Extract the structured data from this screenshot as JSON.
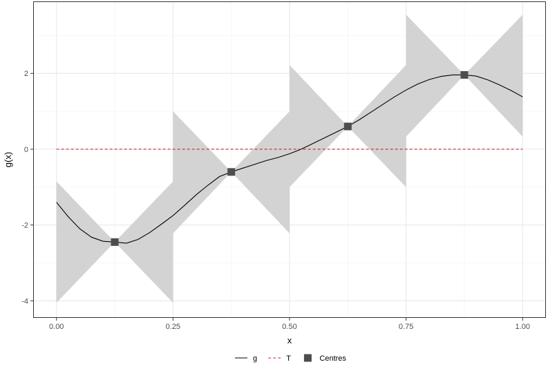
{
  "chart_data": {
    "type": "line",
    "title": "",
    "xlabel": "x",
    "ylabel": "g(x)",
    "xlim": [
      -0.05,
      1.05
    ],
    "ylim": [
      -4.45,
      3.9
    ],
    "grid": true,
    "x_ticks": [
      0.0,
      0.25,
      0.5,
      0.75,
      1.0
    ],
    "x_tick_labels": [
      "0.00",
      "0.25",
      "0.50",
      "0.75",
      "1.00"
    ],
    "y_ticks": [
      -4,
      -2,
      0,
      2
    ],
    "y_tick_labels": [
      "-4",
      "-2",
      "0",
      "2"
    ],
    "legend_position": "bottom",
    "legend": [
      {
        "name": "g",
        "style": "solid-line",
        "color": "#000000"
      },
      {
        "name": "T",
        "style": "dashed-line",
        "color": "#e41a1c"
      },
      {
        "name": "Centres",
        "style": "square",
        "color": "#4d4d4d"
      }
    ],
    "series": [
      {
        "name": "g",
        "color": "#000000",
        "x": [
          0.0,
          0.025,
          0.05,
          0.075,
          0.1,
          0.125,
          0.15,
          0.175,
          0.2,
          0.225,
          0.25,
          0.275,
          0.3,
          0.325,
          0.35,
          0.375,
          0.4,
          0.425,
          0.45,
          0.475,
          0.5,
          0.525,
          0.55,
          0.575,
          0.6,
          0.625,
          0.65,
          0.675,
          0.7,
          0.725,
          0.75,
          0.775,
          0.8,
          0.825,
          0.85,
          0.875,
          0.9,
          0.925,
          0.95,
          0.975,
          1.0
        ],
        "y": [
          -1.4,
          -1.78,
          -2.1,
          -2.32,
          -2.43,
          -2.45,
          -2.48,
          -2.38,
          -2.2,
          -1.98,
          -1.75,
          -1.48,
          -1.2,
          -0.95,
          -0.72,
          -0.6,
          -0.5,
          -0.4,
          -0.3,
          -0.22,
          -0.12,
          0.0,
          0.15,
          0.3,
          0.45,
          0.6,
          0.78,
          0.98,
          1.18,
          1.38,
          1.56,
          1.72,
          1.84,
          1.92,
          1.96,
          1.96,
          1.93,
          1.83,
          1.7,
          1.55,
          1.38
        ]
      },
      {
        "name": "T",
        "color": "#e41a1c",
        "x": [
          0.0,
          1.0
        ],
        "y": [
          0,
          0
        ]
      }
    ],
    "centres": {
      "name": "Centres",
      "x": [
        0.125,
        0.375,
        0.625,
        0.875
      ],
      "y": [
        -2.45,
        -0.6,
        0.6,
        1.96
      ]
    },
    "bands": [
      {
        "x": [
          0.0,
          0.25
        ],
        "centre": [
          0.125,
          -2.45
        ],
        "lower": [
          -4.05,
          -4.05
        ],
        "upper": [
          -0.85,
          -0.85
        ]
      },
      {
        "x": [
          0.25,
          0.5
        ],
        "centre": [
          0.375,
          -0.6
        ],
        "lower": [
          -2.22,
          -2.22
        ],
        "upper": [
          1.0,
          1.0
        ]
      },
      {
        "x": [
          0.5,
          0.75
        ],
        "centre": [
          0.625,
          0.6
        ],
        "lower": [
          -1.0,
          -1.0
        ],
        "upper": [
          2.22,
          2.22
        ]
      },
      {
        "x": [
          0.75,
          1.0
        ],
        "centre": [
          0.875,
          1.96
        ],
        "lower": [
          0.33,
          0.33
        ],
        "upper": [
          3.55,
          3.55
        ]
      }
    ],
    "band_color": "#d3d3d3"
  }
}
